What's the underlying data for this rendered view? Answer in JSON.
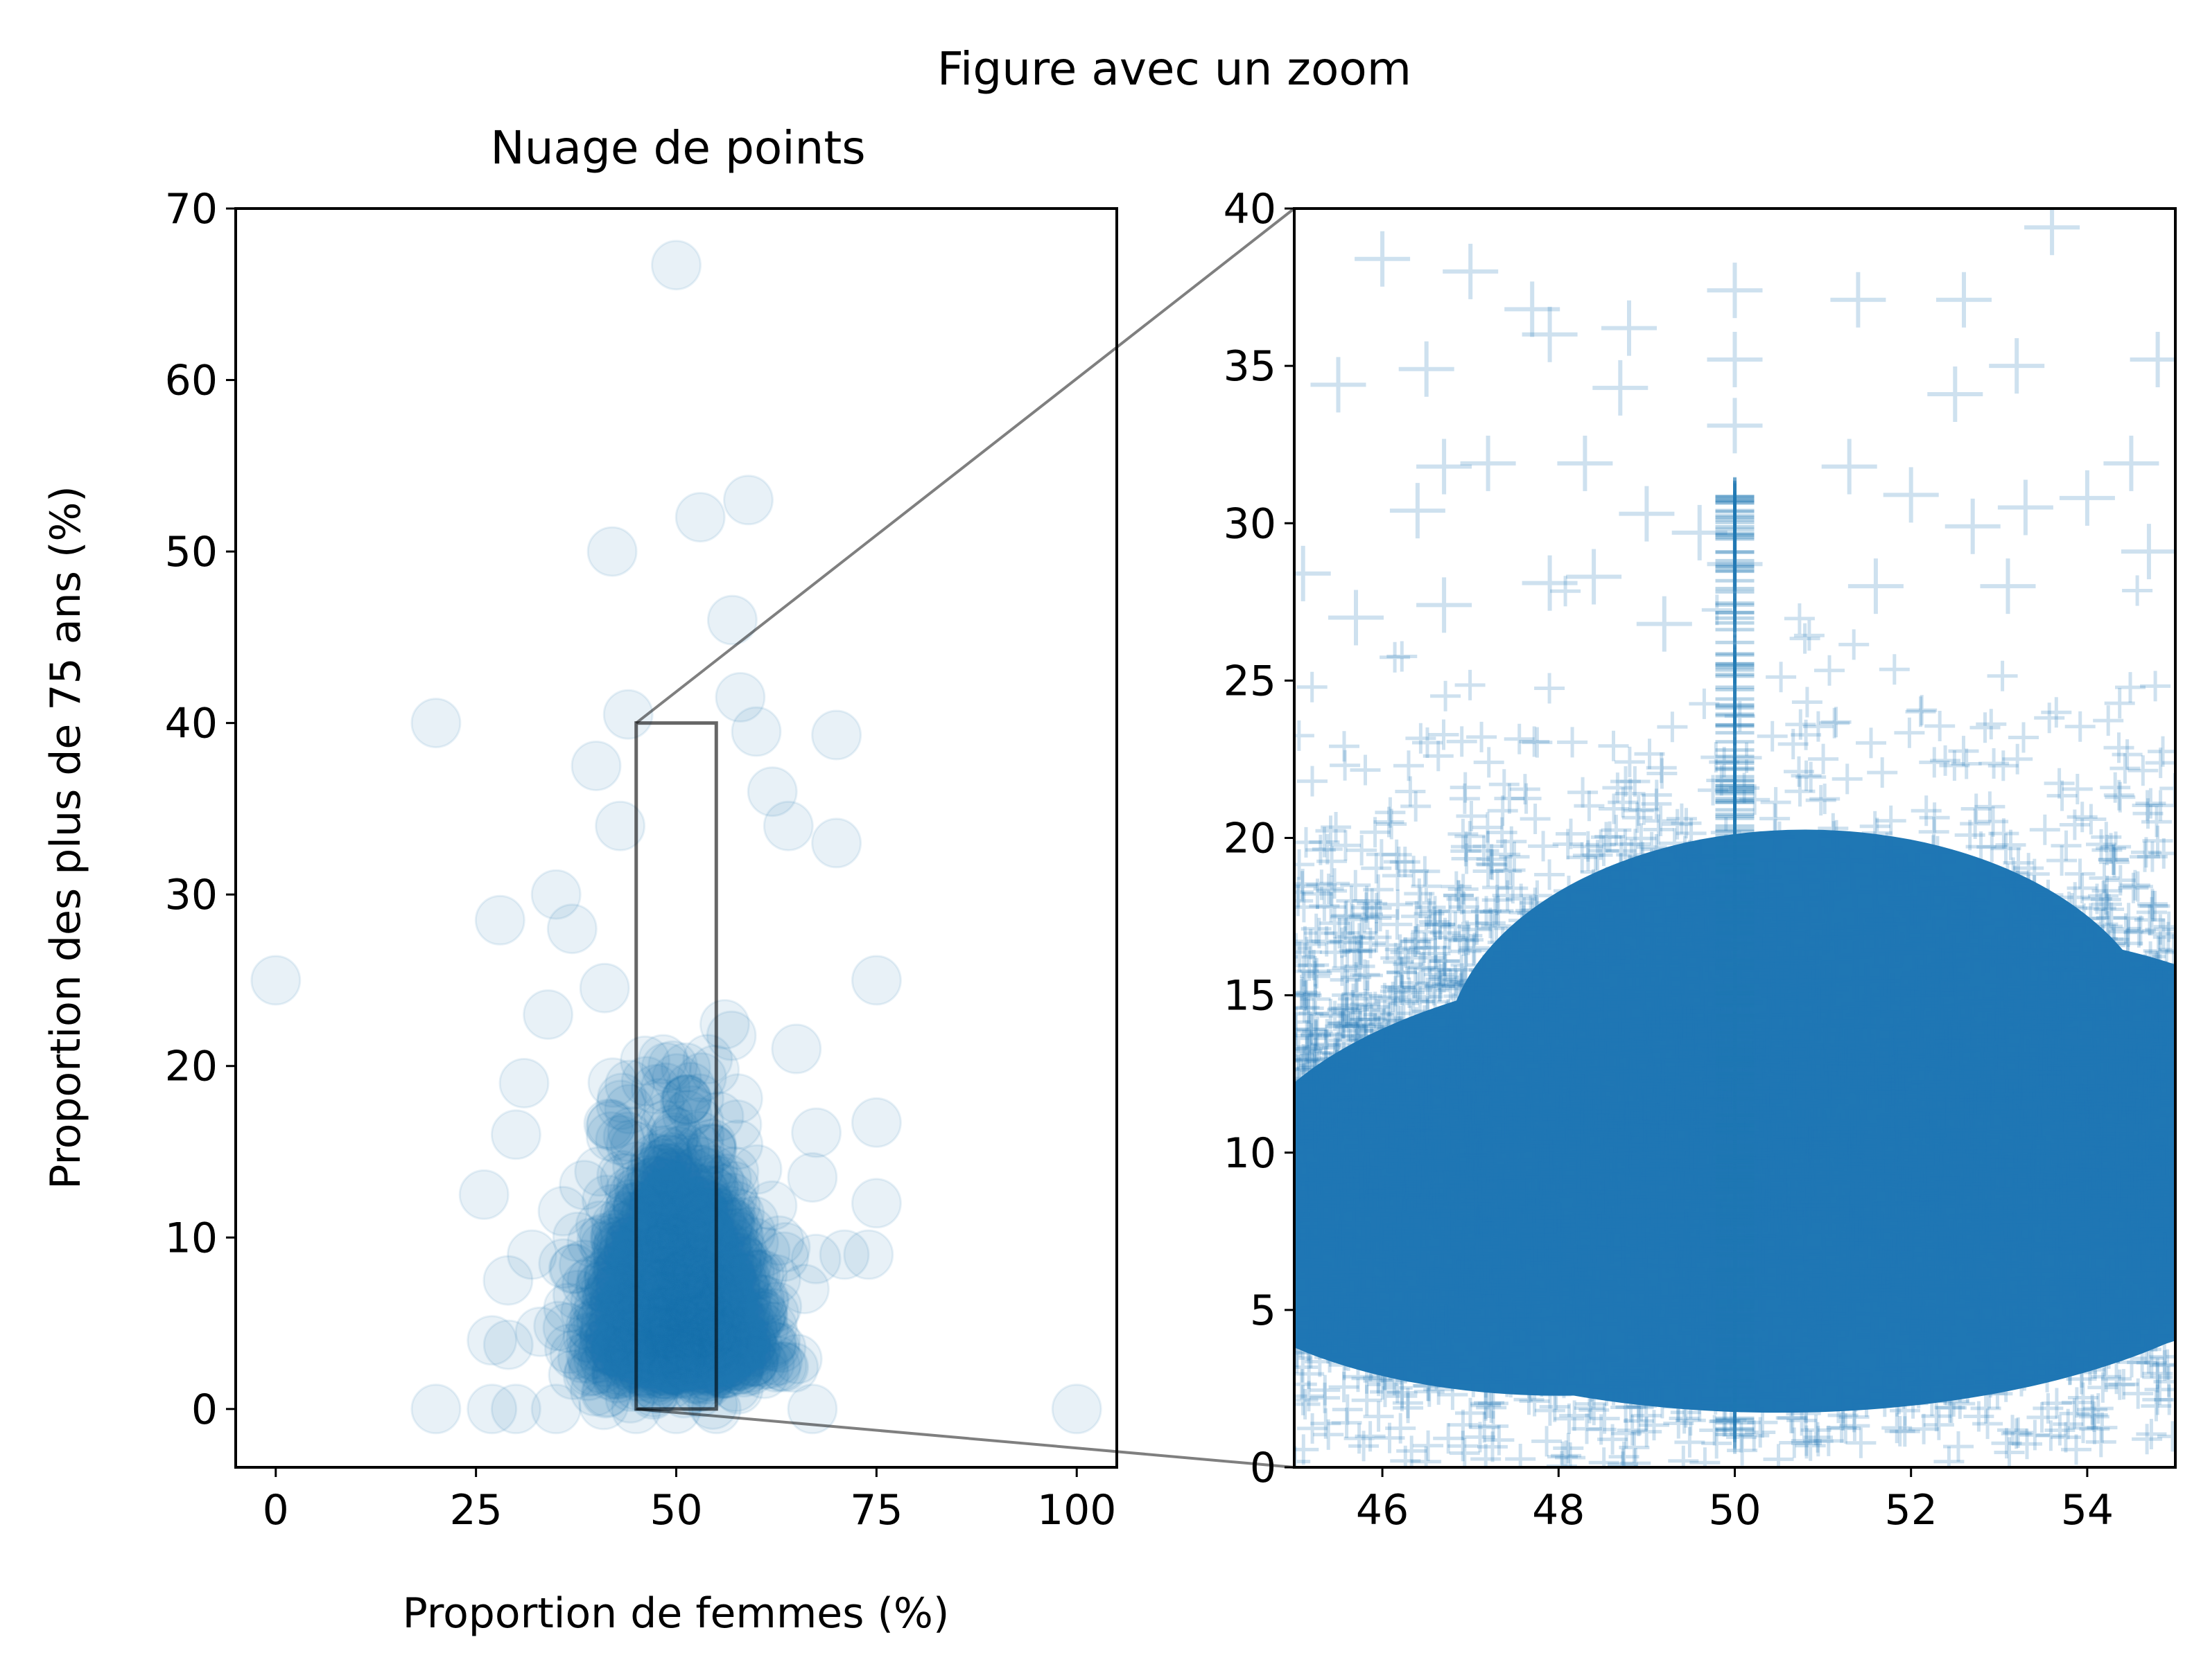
{
  "figure": {
    "suptitle": "Figure avec un zoom"
  },
  "colors": {
    "series": "#1f77b4",
    "inset_box": "#000000",
    "connector": "#808080"
  },
  "chart_data": [
    {
      "type": "scatter",
      "panel": "left",
      "title": "Nuage de points",
      "xlabel": "Proportion de femmes (%)",
      "ylabel": "Proportion des plus de 75 ans (%)",
      "xlim": [
        -5,
        105
      ],
      "ylim": [
        -3.4,
        70
      ],
      "xticks": [
        0,
        25,
        50,
        75,
        100
      ],
      "yticks": [
        0,
        10,
        20,
        30,
        40,
        50,
        60,
        70
      ],
      "marker": "circle",
      "alpha": 0.1,
      "grid": false,
      "series": [
        {
          "points": [
            [
              50,
              66.7
            ],
            [
              59,
              53
            ],
            [
              53,
              52
            ],
            [
              42,
              50
            ],
            [
              57,
              46
            ],
            [
              20,
              40
            ],
            [
              44,
              40.5
            ],
            [
              58,
              41.5
            ],
            [
              60,
              39.5
            ],
            [
              70,
              39.3
            ],
            [
              62,
              36
            ],
            [
              40,
              37.5
            ],
            [
              43,
              34
            ],
            [
              64,
              34
            ],
            [
              70,
              33
            ],
            [
              35,
              30
            ],
            [
              37,
              28
            ],
            [
              28,
              28.5
            ],
            [
              0,
              25
            ],
            [
              75,
              25
            ],
            [
              34,
              23
            ],
            [
              65,
              21
            ],
            [
              31,
              19
            ],
            [
              75,
              16.7
            ],
            [
              30,
              16
            ],
            [
              26,
              12.5
            ],
            [
              75,
              12
            ],
            [
              67,
              13.5
            ],
            [
              74,
              9
            ],
            [
              71,
              9
            ],
            [
              32,
              9
            ],
            [
              66,
              7
            ],
            [
              29,
              7.5
            ],
            [
              33,
              4.5
            ],
            [
              27,
              4
            ],
            [
              20,
              0
            ],
            [
              27,
              0
            ],
            [
              30,
              0
            ],
            [
              35,
              0
            ],
            [
              67,
              0
            ],
            [
              100,
              0
            ],
            [
              45,
              0
            ],
            [
              55,
              0
            ],
            [
              50,
              0
            ]
          ],
          "dense_region": {
            "x_center": 50,
            "x_spread": 4.5,
            "y_center": 10,
            "y_spread": 7,
            "y_range": [
              0,
              33
            ]
          }
        }
      ],
      "zoom_box": {
        "x": [
          45,
          55
        ],
        "y": [
          0,
          40
        ]
      }
    },
    {
      "type": "scatter",
      "panel": "right",
      "title": "",
      "xlabel": "",
      "ylabel": "",
      "xlim": [
        45,
        55
      ],
      "ylim": [
        0,
        40
      ],
      "xticks": [
        46,
        48,
        50,
        52,
        54
      ],
      "yticks": [
        0,
        5,
        10,
        15,
        20,
        25,
        30,
        35,
        40
      ],
      "marker": "plus",
      "alpha": 0.2,
      "grid": false,
      "series": [
        {
          "points": [
            [
              46.0,
              38.4
            ],
            [
              47.0,
              38.0
            ],
            [
              47.7,
              36.8
            ],
            [
              47.9,
              36.0
            ],
            [
              48.8,
              36.2
            ],
            [
              50.0,
              37.4
            ],
            [
              51.4,
              37.1
            ],
            [
              52.6,
              37.1
            ],
            [
              53.6,
              39.4
            ],
            [
              45.5,
              34.4
            ],
            [
              46.5,
              34.9
            ],
            [
              48.7,
              34.3
            ],
            [
              50.0,
              35.2
            ],
            [
              52.5,
              34.1
            ],
            [
              53.2,
              35.0
            ],
            [
              54.8,
              35.2
            ],
            [
              46.7,
              31.8
            ],
            [
              47.2,
              31.9
            ],
            [
              48.3,
              31.9
            ],
            [
              50.0,
              33.1
            ],
            [
              51.3,
              31.8
            ],
            [
              52.0,
              30.9
            ],
            [
              53.3,
              30.5
            ],
            [
              54.0,
              30.8
            ],
            [
              54.5,
              31.9
            ],
            [
              46.4,
              30.4
            ],
            [
              49.0,
              30.3
            ],
            [
              49.6,
              29.7
            ],
            [
              52.7,
              29.9
            ],
            [
              54.7,
              29.1
            ],
            [
              45.1,
              28.4
            ],
            [
              47.9,
              28.1
            ],
            [
              48.4,
              28.3
            ],
            [
              50.0,
              28.7
            ],
            [
              51.6,
              28.0
            ],
            [
              53.1,
              28.0
            ],
            [
              46.7,
              27.4
            ],
            [
              45.7,
              27.0
            ],
            [
              49.2,
              26.8
            ]
          ],
          "dense_region": {
            "x_range": [
              45,
              55
            ],
            "y_center": 10.5,
            "y_spread": 5,
            "y_range": [
              0,
              28
            ]
          }
        }
      ]
    }
  ]
}
